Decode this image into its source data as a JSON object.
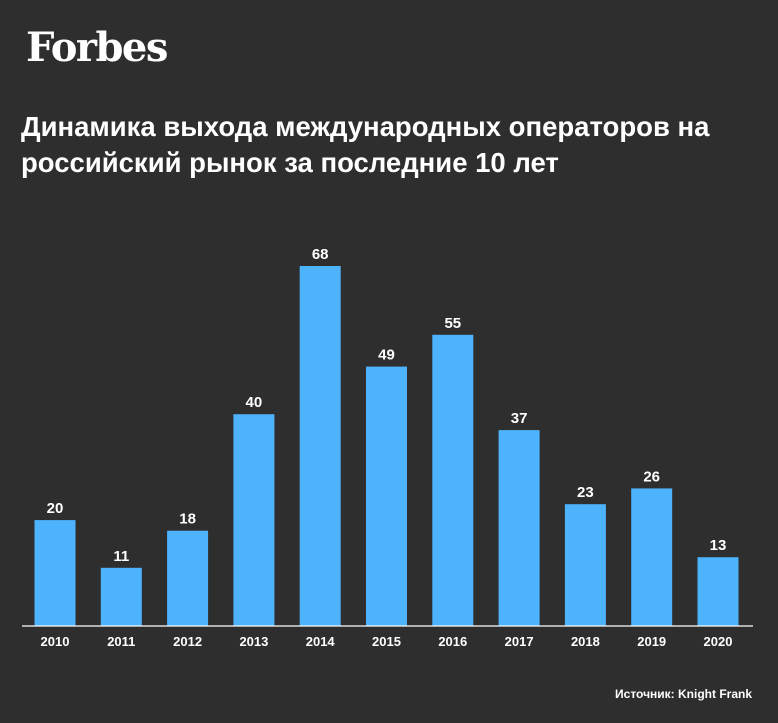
{
  "brand": {
    "logo_text": "Forbes"
  },
  "header": {
    "title_line1": "Динамика выхода международных операторов на",
    "title_line2": "российский рынок за последние 10 лет"
  },
  "footer": {
    "source": "Источник: Knight Frank"
  },
  "colors": {
    "background": "#2e2e2e",
    "bar": "#4db3fd",
    "text": "#ffffff",
    "axis": "#ffffff"
  },
  "chart_data": {
    "type": "bar",
    "categories": [
      "2010",
      "2011",
      "2012",
      "2013",
      "2014",
      "2015",
      "2016",
      "2017",
      "2018",
      "2019",
      "2020"
    ],
    "values": [
      20,
      11,
      18,
      40,
      68,
      49,
      55,
      37,
      23,
      26,
      13
    ],
    "title": "Динамика выхода международных операторов на российский рынок за последние 10 лет",
    "xlabel": "",
    "ylabel": "",
    "ylim": [
      0,
      68
    ],
    "grid": false,
    "legend": "none",
    "data_labels": true
  }
}
